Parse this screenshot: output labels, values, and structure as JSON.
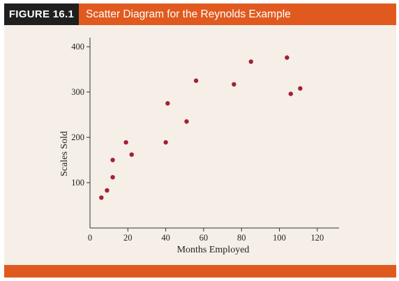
{
  "header": {
    "figure_number": "FIGURE 16.1",
    "title": "Scatter Diagram for the Reynolds Example"
  },
  "colors": {
    "header_dark": "#1f1f1f",
    "accent_orange": "#e05a1f",
    "panel_background": "#f6efe7",
    "point_color": "#a31f3d"
  },
  "chart_data": {
    "type": "scatter",
    "title": "",
    "xlabel": "Months Employed",
    "ylabel": "Scales Sold",
    "xlim": [
      0,
      130
    ],
    "ylim": [
      0,
      420
    ],
    "x_ticks": [
      0,
      20,
      40,
      60,
      80,
      100,
      120
    ],
    "y_ticks": [
      100,
      200,
      300,
      400
    ],
    "grid": false,
    "legend": "none",
    "series": [
      {
        "points": [
          {
            "x": 41,
            "y": 275
          },
          {
            "x": 106,
            "y": 296
          },
          {
            "x": 76,
            "y": 317
          },
          {
            "x": 104,
            "y": 376
          },
          {
            "x": 22,
            "y": 162
          },
          {
            "x": 12,
            "y": 150
          },
          {
            "x": 85,
            "y": 367
          },
          {
            "x": 111,
            "y": 308
          },
          {
            "x": 40,
            "y": 189
          },
          {
            "x": 51,
            "y": 235
          },
          {
            "x": 9,
            "y": 83
          },
          {
            "x": 12,
            "y": 112
          },
          {
            "x": 6,
            "y": 67
          },
          {
            "x": 56,
            "y": 325
          },
          {
            "x": 19,
            "y": 189
          }
        ]
      }
    ]
  }
}
